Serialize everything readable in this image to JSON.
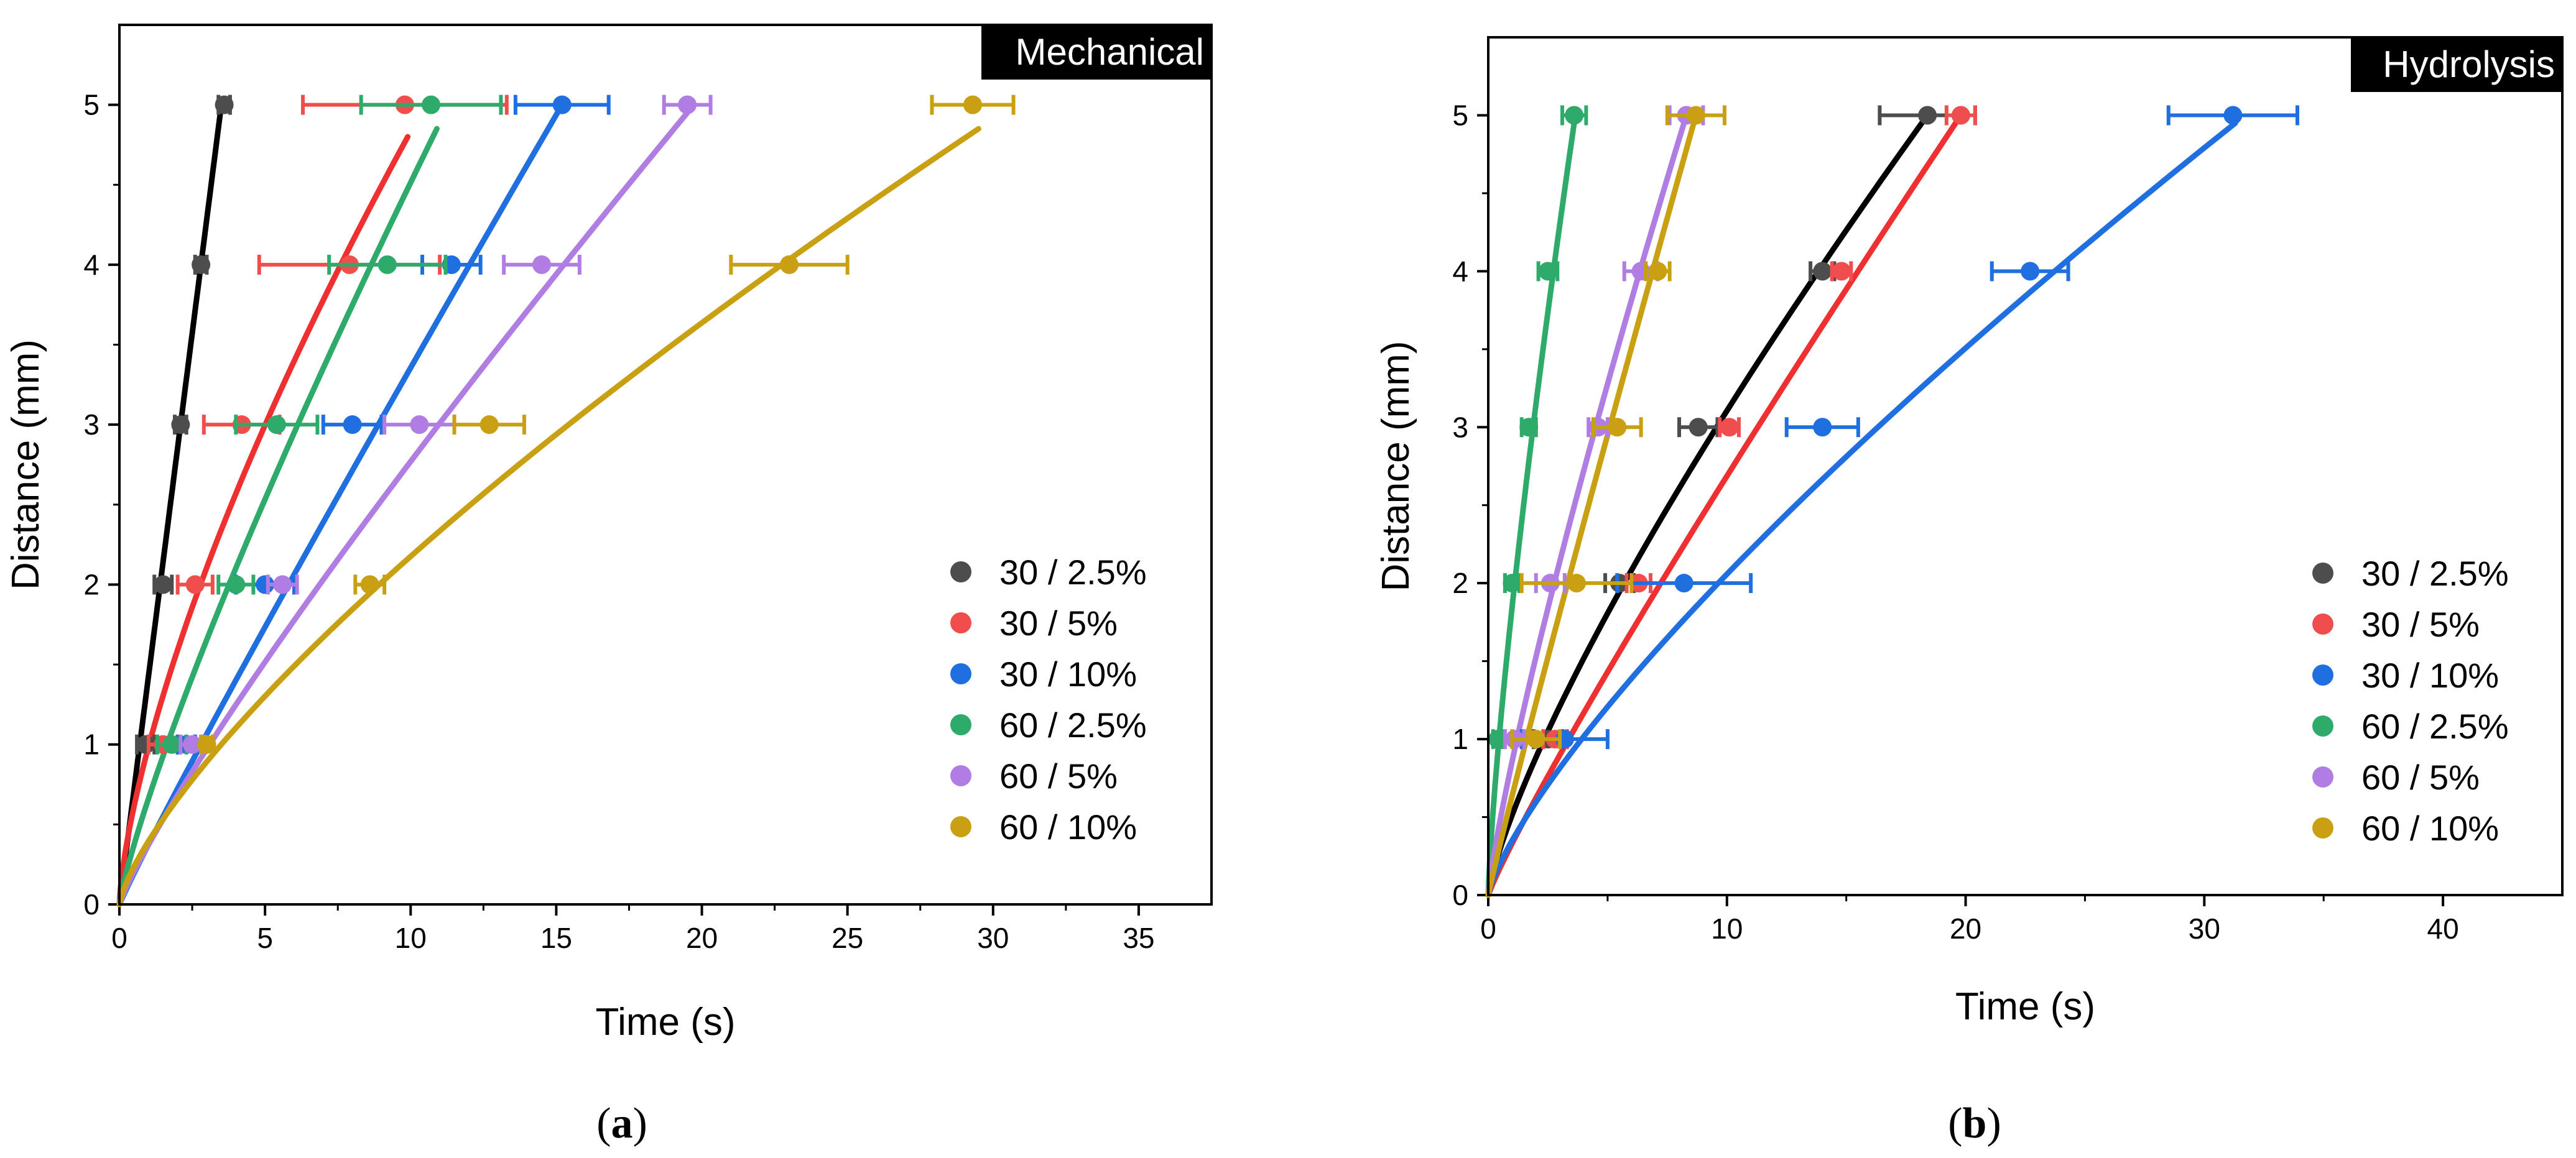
{
  "chart_data": [
    {
      "type": "scatter",
      "panel_title": "Mechanical",
      "caption_letter": "a",
      "xlabel": "Time (s)",
      "ylabel": "Distance (mm)",
      "xlim": [
        0,
        37.5
      ],
      "ylim": [
        0,
        5.5
      ],
      "xticks": [
        0,
        5,
        10,
        15,
        20,
        25,
        30,
        35
      ],
      "yticks": [
        0,
        1,
        2,
        3,
        4,
        5
      ],
      "legend_position": "bottom-right",
      "series": [
        {
          "name": "30 / 2.5%",
          "color": "#4d4d4d",
          "fit_color": "#000000",
          "points": [
            {
              "x": 0.9,
              "y": 1,
              "err": 0.3
            },
            {
              "x": 1.5,
              "y": 2,
              "err": 0.3
            },
            {
              "x": 2.1,
              "y": 3,
              "err": 0.2
            },
            {
              "x": 2.8,
              "y": 4,
              "err": 0.2
            },
            {
              "x": 3.6,
              "y": 5,
              "err": 0.2
            }
          ],
          "fit": {
            "x_end": 3.5,
            "y_end": 5.0,
            "power": 1.0
          }
        },
        {
          "name": "30 / 5%",
          "color": "#f04d4d",
          "fit_color": "#f03030",
          "points": [
            {
              "x": 1.5,
              "y": 1,
              "err": 0.5
            },
            {
              "x": 2.6,
              "y": 2,
              "err": 0.6
            },
            {
              "x": 4.2,
              "y": 3,
              "err": 1.3
            },
            {
              "x": 7.9,
              "y": 4,
              "err": 3.1
            },
            {
              "x": 9.8,
              "y": 5,
              "err": 3.5
            }
          ],
          "fit": {
            "x_end": 9.9,
            "y_end": 4.8,
            "power": 1.45
          }
        },
        {
          "name": "30 / 10%",
          "color": "#1f6fe0",
          "fit_color": "#1f6fe0",
          "points": [
            {
              "x": 2.3,
              "y": 1,
              "err": 0.3
            },
            {
              "x": 5.0,
              "y": 2,
              "err": 1.0
            },
            {
              "x": 8.0,
              "y": 3,
              "err": 1.0
            },
            {
              "x": 11.4,
              "y": 4,
              "err": 1.0
            },
            {
              "x": 15.2,
              "y": 5,
              "err": 1.6
            }
          ],
          "fit": {
            "x_end": 15.2,
            "y_end": 5.0,
            "power": 1.05
          }
        },
        {
          "name": "60 / 2.5%",
          "color": "#2eab6a",
          "fit_color": "#2eab6a",
          "points": [
            {
              "x": 1.8,
              "y": 1,
              "err": 0.5
            },
            {
              "x": 4.0,
              "y": 2,
              "err": 0.6
            },
            {
              "x": 5.4,
              "y": 3,
              "err": 1.4
            },
            {
              "x": 9.2,
              "y": 4,
              "err": 2.0
            },
            {
              "x": 10.7,
              "y": 5,
              "err": 2.4
            }
          ],
          "fit": {
            "x_end": 10.9,
            "y_end": 4.85,
            "power": 1.2
          }
        },
        {
          "name": "60 / 5%",
          "color": "#b07de3",
          "fit_color": "#b07de3",
          "points": [
            {
              "x": 2.5,
              "y": 1,
              "err": 0.4
            },
            {
              "x": 5.6,
              "y": 2,
              "err": 0.5
            },
            {
              "x": 10.3,
              "y": 3,
              "err": 1.2
            },
            {
              "x": 14.5,
              "y": 4,
              "err": 1.3
            },
            {
              "x": 19.5,
              "y": 5,
              "err": 0.8
            }
          ],
          "fit": {
            "x_end": 19.5,
            "y_end": 4.95,
            "power": 1.15
          }
        },
        {
          "name": "60 / 10%",
          "color": "#c8a012",
          "fit_color": "#c8a012",
          "points": [
            {
              "x": 3.0,
              "y": 1,
              "err": 0.2
            },
            {
              "x": 8.6,
              "y": 2,
              "err": 0.5
            },
            {
              "x": 12.7,
              "y": 3,
              "err": 1.2
            },
            {
              "x": 23.0,
              "y": 4,
              "err": 2.0
            },
            {
              "x": 29.3,
              "y": 5,
              "err": 1.4
            }
          ],
          "fit": {
            "x_end": 29.5,
            "y_end": 4.85,
            "power": 1.35
          }
        }
      ]
    },
    {
      "type": "scatter",
      "panel_title": "Hydrolysis",
      "caption_letter": "b",
      "xlabel": "Time (s)",
      "ylabel": "Distance (mm)",
      "xlim": [
        0,
        45
      ],
      "ylim": [
        0,
        5.5
      ],
      "xticks": [
        0,
        10,
        20,
        30,
        40
      ],
      "yticks": [
        0,
        1,
        2,
        3,
        4,
        5
      ],
      "legend_position": "bottom-right",
      "series": [
        {
          "name": "30 / 2.5%",
          "color": "#4d4d4d",
          "fit_color": "#000000",
          "points": [
            {
              "x": 2.5,
              "y": 1,
              "err": 0.6
            },
            {
              "x": 5.5,
              "y": 2,
              "err": 0.6
            },
            {
              "x": 8.8,
              "y": 3,
              "err": 0.8
            },
            {
              "x": 14.0,
              "y": 4,
              "err": 0.5
            },
            {
              "x": 18.4,
              "y": 5,
              "err": 2.0
            }
          ],
          "fit": {
            "x_end": 18.4,
            "y_end": 5.0,
            "power": 1.28
          }
        },
        {
          "name": "30 / 5%",
          "color": "#f04d4d",
          "fit_color": "#f03030",
          "points": [
            {
              "x": 2.8,
              "y": 1,
              "err": 0.5
            },
            {
              "x": 6.3,
              "y": 2,
              "err": 0.5
            },
            {
              "x": 10.1,
              "y": 3,
              "err": 0.4
            },
            {
              "x": 14.8,
              "y": 4,
              "err": 0.4
            },
            {
              "x": 19.8,
              "y": 5,
              "err": 0.6
            }
          ],
          "fit": {
            "x_end": 19.8,
            "y_end": 5.0,
            "power": 1.1
          }
        },
        {
          "name": "30 / 10%",
          "color": "#1f6fe0",
          "fit_color": "#1f6fe0",
          "points": [
            {
              "x": 3.2,
              "y": 1,
              "err": 1.8
            },
            {
              "x": 8.2,
              "y": 2,
              "err": 2.8
            },
            {
              "x": 14.0,
              "y": 3,
              "err": 1.5
            },
            {
              "x": 22.7,
              "y": 4,
              "err": 1.6
            },
            {
              "x": 31.2,
              "y": 5,
              "err": 2.7
            }
          ],
          "fit": {
            "x_end": 31.3,
            "y_end": 4.95,
            "power": 1.3
          }
        },
        {
          "name": "60 / 2.5%",
          "color": "#2eab6a",
          "fit_color": "#2eab6a",
          "points": [
            {
              "x": 0.4,
              "y": 1,
              "err": 0.2
            },
            {
              "x": 1.0,
              "y": 2,
              "err": 0.3
            },
            {
              "x": 1.7,
              "y": 3,
              "err": 0.3
            },
            {
              "x": 2.5,
              "y": 4,
              "err": 0.4
            },
            {
              "x": 3.6,
              "y": 5,
              "err": 0.5
            }
          ],
          "fit": {
            "x_end": 3.6,
            "y_end": 4.95,
            "power": 1.3
          }
        },
        {
          "name": "60 / 5%",
          "color": "#b07de3",
          "fit_color": "#b07de3",
          "points": [
            {
              "x": 1.1,
              "y": 1,
              "err": 0.4
            },
            {
              "x": 2.6,
              "y": 2,
              "err": 0.6
            },
            {
              "x": 4.6,
              "y": 3,
              "err": 0.4
            },
            {
              "x": 6.4,
              "y": 4,
              "err": 0.7
            },
            {
              "x": 8.3,
              "y": 5,
              "err": 0.7
            }
          ],
          "fit": {
            "x_end": 8.3,
            "y_end": 5.0,
            "power": 1.2
          }
        },
        {
          "name": "60 / 10%",
          "color": "#c8a012",
          "fit_color": "#c8a012",
          "points": [
            {
              "x": 2.0,
              "y": 1,
              "err": 1.0
            },
            {
              "x": 3.7,
              "y": 2,
              "err": 2.3
            },
            {
              "x": 5.4,
              "y": 3,
              "err": 1.0
            },
            {
              "x": 7.1,
              "y": 4,
              "err": 0.5
            },
            {
              "x": 8.7,
              "y": 5,
              "err": 1.2
            }
          ],
          "fit": {
            "x_end": 8.7,
            "y_end": 5.0,
            "power": 1.05
          }
        }
      ]
    }
  ]
}
